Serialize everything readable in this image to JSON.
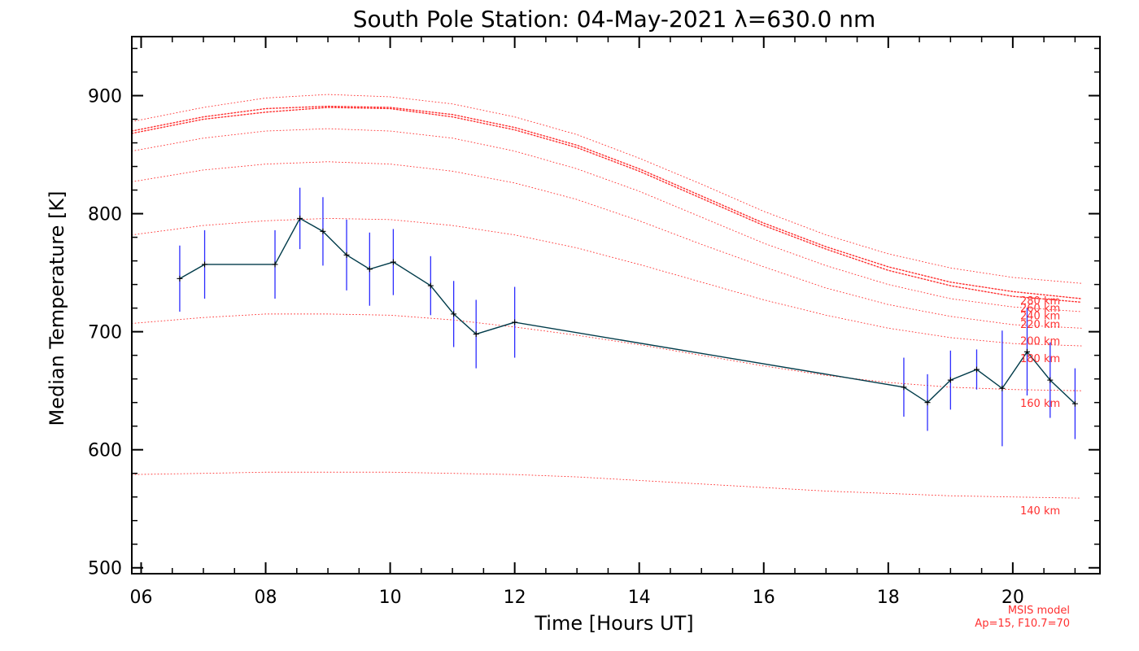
{
  "chart_data": {
    "type": "line",
    "title": "South Pole Station: 04-May-2021 λ=630.0 nm",
    "xlabel": "Time [Hours UT]",
    "ylabel": "Median Temperature [K]",
    "xlim": [
      5.85,
      21.4
    ],
    "ylim": [
      495,
      950
    ],
    "x_ticks": [
      6,
      8,
      10,
      12,
      14,
      16,
      18,
      20
    ],
    "x_tick_labels": [
      "06",
      "08",
      "10",
      "12",
      "14",
      "16",
      "18",
      "20"
    ],
    "y_ticks": [
      500,
      600,
      700,
      800,
      900
    ],
    "y_tick_labels": [
      "500",
      "600",
      "700",
      "800",
      "900"
    ],
    "colors": {
      "measurement_line": "#003b4a",
      "error_bar": "#2b2bff",
      "model": "#ff3030",
      "marker": "#000000",
      "axes": "#000000"
    },
    "series": [
      {
        "name": "median_temperature",
        "x": [
          6.62,
          7.02,
          8.15,
          8.55,
          8.92,
          9.3,
          9.67,
          10.05,
          10.65,
          11.02,
          11.38,
          12.0,
          18.25,
          18.63,
          19.0,
          19.42,
          19.83,
          20.23,
          20.6,
          21.0
        ],
        "y": [
          745,
          757,
          757,
          796,
          785,
          765,
          753,
          759,
          739,
          715,
          698,
          708,
          653,
          640,
          659,
          668,
          652,
          683,
          659,
          639
        ],
        "error": [
          28,
          29,
          29,
          26,
          29,
          30,
          31,
          28,
          25,
          28,
          29,
          30,
          25,
          24,
          25,
          17,
          49,
          37,
          32,
          30
        ]
      }
    ],
    "models": [
      {
        "label": "140 km",
        "x": [
          5.85,
          7,
          8,
          9,
          10,
          11,
          12,
          13,
          14,
          15,
          16,
          17,
          18,
          19,
          20,
          21.1
        ],
        "y": [
          579,
          580,
          581,
          581,
          581,
          580,
          579,
          577,
          574,
          571,
          568,
          565,
          563,
          561,
          560,
          559
        ]
      },
      {
        "label": "160 km",
        "x": [
          5.85,
          7,
          8,
          9,
          10,
          11,
          12,
          13,
          14,
          15,
          16,
          17,
          18,
          19,
          20,
          21.1
        ],
        "y": [
          707,
          712,
          715,
          715,
          714,
          710,
          704,
          697,
          689,
          680,
          671,
          663,
          657,
          653,
          651,
          650
        ]
      },
      {
        "label": "180 km",
        "x": [
          5.85,
          7,
          8,
          9,
          10,
          11,
          12,
          13,
          14,
          15,
          16,
          17,
          18,
          19,
          20,
          21.1
        ],
        "y": [
          782,
          790,
          794,
          796,
          795,
          790,
          782,
          771,
          757,
          742,
          727,
          714,
          703,
          695,
          690,
          688
        ]
      },
      {
        "label": "200 km",
        "x": [
          5.85,
          7,
          8,
          9,
          10,
          11,
          12,
          13,
          14,
          15,
          16,
          17,
          18,
          19,
          20,
          21.1
        ],
        "y": [
          827,
          837,
          842,
          844,
          842,
          836,
          826,
          812,
          794,
          774,
          755,
          737,
          723,
          713,
          706,
          703
        ]
      },
      {
        "label": "220 km",
        "x": [
          5.85,
          7,
          8,
          9,
          10,
          11,
          12,
          13,
          14,
          15,
          16,
          17,
          18,
          19,
          20,
          21.1
        ],
        "y": [
          853,
          864,
          870,
          872,
          870,
          864,
          853,
          838,
          819,
          797,
          775,
          756,
          740,
          728,
          721,
          717
        ]
      },
      {
        "label": "240 km",
        "x": [
          5.85,
          7,
          8,
          9,
          10,
          11,
          12,
          13,
          14,
          15,
          16,
          17,
          18,
          19,
          20,
          21.1
        ],
        "y": [
          868,
          880,
          886,
          890,
          889,
          882,
          871,
          856,
          836,
          813,
          790,
          770,
          752,
          739,
          730,
          725
        ]
      },
      {
        "label": "260 km",
        "x": [
          5.85,
          7,
          8,
          9,
          10,
          11,
          12,
          13,
          14,
          15,
          16,
          17,
          18,
          19,
          20,
          21.1
        ],
        "y": [
          870,
          882,
          889,
          891,
          890,
          884,
          873,
          858,
          838,
          815,
          792,
          772,
          755,
          742,
          734,
          728
        ]
      },
      {
        "label": "280 km",
        "x": [
          5.85,
          7,
          8,
          9,
          10,
          11,
          12,
          13,
          14,
          15,
          16,
          17,
          18,
          19,
          20,
          21.1
        ],
        "y": [
          878,
          890,
          898,
          901,
          899,
          893,
          882,
          867,
          847,
          825,
          802,
          782,
          766,
          754,
          746,
          741
        ]
      }
    ],
    "model_note": [
      "MSIS model",
      "Ap=15, F10.7=70"
    ],
    "grid": false,
    "legend": "none"
  }
}
